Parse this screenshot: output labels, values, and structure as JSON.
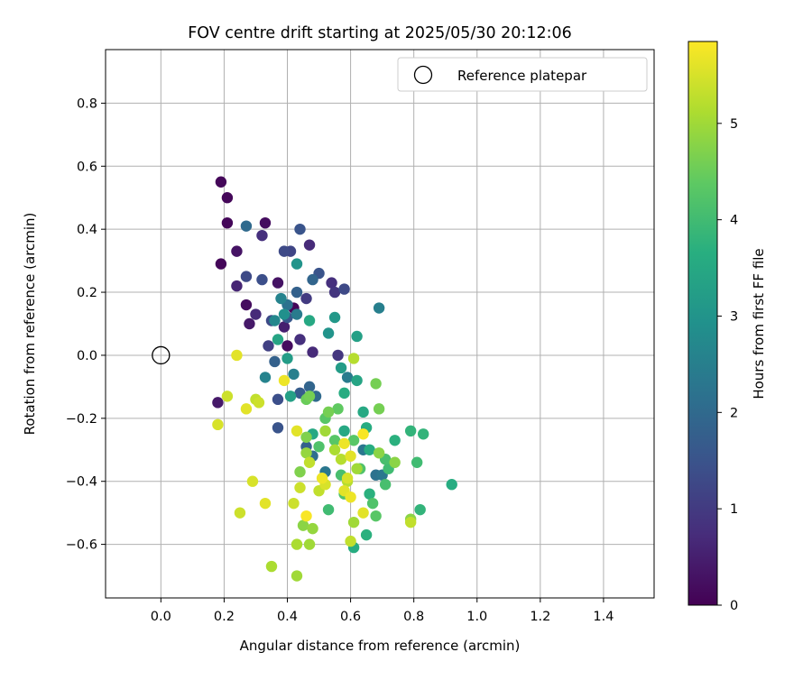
{
  "chart_data": {
    "type": "scatter",
    "title": "FOV centre drift starting at 2025/05/30 20:12:06",
    "xlabel": "Angular distance from reference (arcmin)",
    "ylabel": "Rotation from reference (arcmin)",
    "xlim": [
      -0.175,
      1.56
    ],
    "ylim": [
      -0.77,
      0.97
    ],
    "x_ticks": [
      0.0,
      0.2,
      0.4,
      0.6,
      0.8,
      1.0,
      1.2,
      1.4
    ],
    "x_tick_labels": [
      "0.0",
      "0.2",
      "0.4",
      "0.6",
      "0.8",
      "1.0",
      "1.2",
      "1.4"
    ],
    "y_ticks": [
      -0.6,
      -0.4,
      -0.2,
      0.0,
      0.2,
      0.4,
      0.6,
      0.8
    ],
    "y_tick_labels": [
      "−0.6",
      "−0.4",
      "−0.2",
      "0.0",
      "0.2",
      "0.4",
      "0.6",
      "0.8"
    ],
    "grid": true,
    "legend": {
      "position": "top-right",
      "entries": [
        "Reference platepar"
      ]
    },
    "reference_point": {
      "x": 0.0,
      "y": 0.0
    },
    "colorbar": {
      "label": "Hours from first FF file",
      "min": 0,
      "max": 5.85,
      "ticks": [
        0,
        1,
        2,
        3,
        4,
        5
      ],
      "tick_labels": [
        "0",
        "1",
        "2",
        "3",
        "4",
        "5"
      ],
      "colormap": "viridis"
    },
    "points": [
      [
        0.19,
        0.55,
        0.1
      ],
      [
        0.21,
        0.5,
        0.1
      ],
      [
        0.21,
        0.42,
        0.1
      ],
      [
        0.33,
        0.42,
        0.2
      ],
      [
        0.24,
        0.33,
        0.3
      ],
      [
        0.19,
        0.29,
        0.1
      ],
      [
        0.27,
        0.16,
        0.2
      ],
      [
        0.28,
        0.1,
        0.4
      ],
      [
        0.4,
        0.03,
        0.2
      ],
      [
        0.42,
        0.15,
        0.1
      ],
      [
        0.37,
        0.23,
        0.3
      ],
      [
        0.18,
        -0.15,
        0.4
      ],
      [
        0.24,
        0.22,
        0.6
      ],
      [
        0.32,
        0.38,
        0.8
      ],
      [
        0.47,
        0.35,
        0.7
      ],
      [
        0.3,
        0.13,
        0.7
      ],
      [
        0.39,
        0.09,
        0.5
      ],
      [
        0.44,
        0.05,
        0.8
      ],
      [
        0.48,
        0.01,
        0.7
      ],
      [
        0.54,
        0.23,
        0.8
      ],
      [
        0.55,
        0.2,
        0.9
      ],
      [
        0.56,
        0.0,
        0.9
      ],
      [
        0.46,
        0.18,
        1.0
      ],
      [
        0.34,
        0.03,
        1.1
      ],
      [
        0.41,
        0.33,
        1.2
      ],
      [
        0.39,
        0.33,
        1.3
      ],
      [
        0.27,
        0.25,
        1.3
      ],
      [
        0.32,
        0.24,
        1.4
      ],
      [
        0.35,
        0.11,
        1.3
      ],
      [
        0.44,
        0.4,
        1.5
      ],
      [
        0.5,
        0.26,
        1.5
      ],
      [
        0.58,
        0.21,
        1.3
      ],
      [
        0.37,
        -0.14,
        1.4
      ],
      [
        0.37,
        -0.23,
        1.5
      ],
      [
        0.4,
        0.12,
        1.6
      ],
      [
        0.43,
        0.2,
        1.8
      ],
      [
        0.48,
        0.24,
        1.9
      ],
      [
        0.27,
        0.41,
        2.0
      ],
      [
        0.36,
        -0.02,
        1.8
      ],
      [
        0.44,
        -0.12,
        1.7
      ],
      [
        0.47,
        -0.1,
        1.9
      ],
      [
        0.49,
        -0.13,
        2.0
      ],
      [
        0.46,
        -0.29,
        1.8
      ],
      [
        0.48,
        -0.32,
        2.1
      ],
      [
        0.4,
        0.16,
        2.2
      ],
      [
        0.43,
        0.13,
        2.4
      ],
      [
        0.38,
        0.18,
        2.6
      ],
      [
        0.42,
        -0.06,
        2.5
      ],
      [
        0.36,
        0.11,
        2.7
      ],
      [
        0.59,
        -0.07,
        2.4
      ],
      [
        0.68,
        -0.38,
        2.2
      ],
      [
        0.7,
        -0.38,
        2.3
      ],
      [
        0.69,
        0.15,
        2.5
      ],
      [
        0.64,
        -0.3,
        2.3
      ],
      [
        0.52,
        -0.37,
        2.3
      ],
      [
        0.33,
        -0.07,
        2.6
      ],
      [
        0.39,
        0.13,
        2.9
      ],
      [
        0.43,
        0.29,
        3.0
      ],
      [
        0.53,
        0.07,
        3.0
      ],
      [
        0.55,
        0.12,
        3.1
      ],
      [
        0.62,
        0.06,
        3.3
      ],
      [
        0.62,
        -0.08,
        3.4
      ],
      [
        0.57,
        -0.04,
        3.2
      ],
      [
        0.4,
        -0.01,
        3.2
      ],
      [
        0.41,
        -0.13,
        3.3
      ],
      [
        0.37,
        0.05,
        3.4
      ],
      [
        0.47,
        0.11,
        3.5
      ],
      [
        0.48,
        -0.25,
        3.5
      ],
      [
        0.58,
        -0.24,
        3.5
      ],
      [
        0.58,
        -0.12,
        3.6
      ],
      [
        0.64,
        -0.18,
        3.5
      ],
      [
        0.65,
        -0.23,
        3.6
      ],
      [
        0.66,
        -0.3,
        3.6
      ],
      [
        0.66,
        -0.44,
        3.7
      ],
      [
        0.65,
        -0.57,
        3.7
      ],
      [
        0.61,
        -0.61,
        3.6
      ],
      [
        0.74,
        -0.27,
        3.7
      ],
      [
        0.79,
        -0.24,
        3.8
      ],
      [
        0.83,
        -0.25,
        3.8
      ],
      [
        0.92,
        -0.41,
        3.6
      ],
      [
        0.82,
        -0.49,
        3.8
      ],
      [
        0.81,
        -0.34,
        4.0
      ],
      [
        0.72,
        -0.36,
        4.0
      ],
      [
        0.71,
        -0.33,
        4.1
      ],
      [
        0.71,
        -0.41,
        4.1
      ],
      [
        0.63,
        -0.36,
        4.2
      ],
      [
        0.67,
        -0.47,
        4.2
      ],
      [
        0.68,
        -0.51,
        4.3
      ],
      [
        0.58,
        -0.44,
        4.2
      ],
      [
        0.57,
        -0.38,
        4.1
      ],
      [
        0.53,
        -0.49,
        4.0
      ],
      [
        0.5,
        -0.29,
        4.2
      ],
      [
        0.55,
        -0.27,
        4.3
      ],
      [
        0.61,
        -0.27,
        4.3
      ],
      [
        0.52,
        -0.2,
        4.3
      ],
      [
        0.56,
        -0.17,
        4.4
      ],
      [
        0.46,
        -0.14,
        4.5
      ],
      [
        0.47,
        -0.13,
        4.6
      ],
      [
        0.53,
        -0.18,
        4.6
      ],
      [
        0.68,
        -0.09,
        4.6
      ],
      [
        0.69,
        -0.17,
        4.6
      ],
      [
        0.69,
        -0.31,
        4.8
      ],
      [
        0.74,
        -0.34,
        4.8
      ],
      [
        0.79,
        -0.52,
        4.8
      ],
      [
        0.46,
        -0.26,
        4.7
      ],
      [
        0.46,
        -0.31,
        4.9
      ],
      [
        0.44,
        -0.37,
        4.7
      ],
      [
        0.45,
        -0.54,
        4.8
      ],
      [
        0.48,
        -0.55,
        4.9
      ],
      [
        0.47,
        -0.6,
        5.0
      ],
      [
        0.43,
        -0.6,
        5.1
      ],
      [
        0.43,
        -0.7,
        5.0
      ],
      [
        0.35,
        -0.67,
        5.1
      ],
      [
        0.61,
        -0.53,
        5.0
      ],
      [
        0.62,
        -0.36,
        5.0
      ],
      [
        0.55,
        -0.3,
        5.1
      ],
      [
        0.52,
        -0.24,
        5.0
      ],
      [
        0.57,
        -0.33,
        5.2
      ],
      [
        0.59,
        -0.4,
        5.2
      ],
      [
        0.6,
        -0.59,
        5.3
      ],
      [
        0.79,
        -0.53,
        5.3
      ],
      [
        0.61,
        -0.01,
        5.2
      ],
      [
        0.5,
        -0.43,
        5.3
      ],
      [
        0.42,
        -0.47,
        5.4
      ],
      [
        0.44,
        -0.42,
        5.4
      ],
      [
        0.47,
        -0.34,
        5.3
      ],
      [
        0.52,
        -0.41,
        5.5
      ],
      [
        0.58,
        -0.43,
        5.6
      ],
      [
        0.59,
        -0.39,
        5.5
      ],
      [
        0.6,
        -0.32,
        5.6
      ],
      [
        0.64,
        -0.5,
        5.6
      ],
      [
        0.6,
        -0.45,
        5.7
      ],
      [
        0.64,
        -0.25,
        5.8
      ],
      [
        0.58,
        -0.28,
        5.7
      ],
      [
        0.46,
        -0.51,
        5.8
      ],
      [
        0.43,
        -0.24,
        5.6
      ],
      [
        0.51,
        -0.39,
        5.7
      ],
      [
        0.39,
        -0.08,
        5.7
      ],
      [
        0.33,
        -0.47,
        5.6
      ],
      [
        0.29,
        -0.4,
        5.5
      ],
      [
        0.25,
        -0.5,
        5.4
      ],
      [
        0.27,
        -0.17,
        5.6
      ],
      [
        0.3,
        -0.14,
        5.3
      ],
      [
        0.31,
        -0.15,
        5.4
      ],
      [
        0.21,
        -0.13,
        5.4
      ],
      [
        0.18,
        -0.22,
        5.5
      ],
      [
        0.24,
        0.0,
        5.6
      ]
    ]
  }
}
